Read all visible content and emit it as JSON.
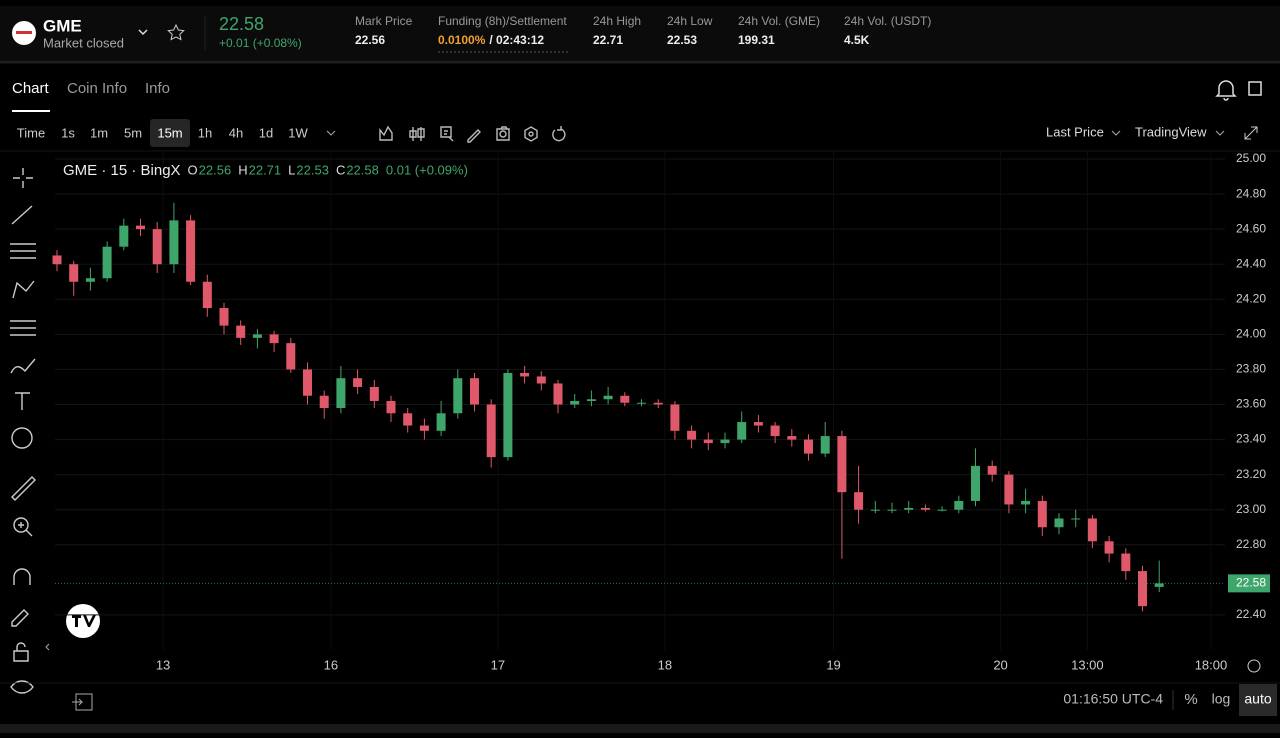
{
  "header": {
    "symbol": "GME",
    "status": "Market closed",
    "price": "22.58",
    "change": "+0.01 (+0.08%)",
    "stats": [
      {
        "label": "Mark Price",
        "value": "22.56"
      },
      {
        "label": "Funding (8h)/Settlement",
        "value": "0.0100%",
        "extra": "/ 02:43:12"
      },
      {
        "label": "24h High",
        "value": "22.71"
      },
      {
        "label": "24h Low",
        "value": "22.53"
      },
      {
        "label": "24h Vol. (GME)",
        "value": "199.31"
      },
      {
        "label": "24h Vol. (USDT)",
        "value": "4.5K"
      }
    ]
  },
  "tabs": [
    "Chart",
    "Coin Info",
    "Info"
  ],
  "toolbar": {
    "intervals": [
      "Time",
      "1s",
      "1m",
      "5m",
      "15m",
      "1h",
      "4h",
      "1d",
      "1W"
    ],
    "active": "15m",
    "price_mode": "Last Price",
    "view": "TradingView"
  },
  "legend": {
    "title": "GME · 15 · BingX",
    "o_label": "O",
    "o": "22.56",
    "h_label": "H",
    "h": "22.71",
    "l_label": "L",
    "l": "22.53",
    "c_label": "C",
    "c": "22.58",
    "change": "0.01 (+0.09%)"
  },
  "footer": {
    "time": "01:16:50 UTC-4",
    "percent": "%",
    "log": "log",
    "auto": "auto"
  },
  "chart_data": {
    "type": "candlestick",
    "up_color": "#3fa66b",
    "down_color": "#e0596b",
    "ohlc": [
      [
        24.45,
        24.48,
        24.36,
        24.4
      ],
      [
        24.4,
        24.42,
        24.22,
        24.3
      ],
      [
        24.3,
        24.38,
        24.25,
        24.32
      ],
      [
        24.32,
        24.53,
        24.3,
        24.5
      ],
      [
        24.5,
        24.66,
        24.48,
        24.62
      ],
      [
        24.62,
        24.66,
        24.56,
        24.6
      ],
      [
        24.6,
        24.64,
        24.35,
        24.4
      ],
      [
        24.4,
        24.75,
        24.35,
        24.65
      ],
      [
        24.65,
        24.68,
        24.28,
        24.3
      ],
      [
        24.3,
        24.34,
        24.1,
        24.15
      ],
      [
        24.15,
        24.18,
        24.0,
        24.05
      ],
      [
        24.05,
        24.08,
        23.94,
        23.98
      ],
      [
        23.98,
        24.03,
        23.92,
        24.0
      ],
      [
        24.0,
        24.02,
        23.9,
        23.95
      ],
      [
        23.95,
        23.98,
        23.78,
        23.8
      ],
      [
        23.8,
        23.84,
        23.6,
        23.65
      ],
      [
        23.65,
        23.68,
        23.52,
        23.58
      ],
      [
        23.58,
        23.82,
        23.55,
        23.75
      ],
      [
        23.75,
        23.8,
        23.66,
        23.7
      ],
      [
        23.7,
        23.74,
        23.58,
        23.62
      ],
      [
        23.62,
        23.65,
        23.5,
        23.55
      ],
      [
        23.55,
        23.58,
        23.44,
        23.48
      ],
      [
        23.48,
        23.52,
        23.4,
        23.45
      ],
      [
        23.45,
        23.62,
        23.42,
        23.55
      ],
      [
        23.55,
        23.8,
        23.52,
        23.75
      ],
      [
        23.75,
        23.78,
        23.56,
        23.6
      ],
      [
        23.6,
        23.63,
        23.24,
        23.3
      ],
      [
        23.3,
        23.8,
        23.28,
        23.78
      ],
      [
        23.78,
        23.82,
        23.72,
        23.76
      ],
      [
        23.76,
        23.79,
        23.68,
        23.72
      ],
      [
        23.72,
        23.74,
        23.55,
        23.6
      ],
      [
        23.6,
        23.66,
        23.58,
        23.62
      ],
      [
        23.62,
        23.68,
        23.59,
        23.63
      ],
      [
        23.63,
        23.7,
        23.6,
        23.65
      ],
      [
        23.65,
        23.67,
        23.59,
        23.61
      ],
      [
        23.61,
        23.63,
        23.59,
        23.61
      ],
      [
        23.61,
        23.63,
        23.58,
        23.6
      ],
      [
        23.6,
        23.62,
        23.4,
        23.45
      ],
      [
        23.45,
        23.48,
        23.35,
        23.4
      ],
      [
        23.4,
        23.44,
        23.34,
        23.38
      ],
      [
        23.38,
        23.44,
        23.35,
        23.4
      ],
      [
        23.4,
        23.56,
        23.38,
        23.5
      ],
      [
        23.5,
        23.54,
        23.44,
        23.48
      ],
      [
        23.48,
        23.5,
        23.38,
        23.42
      ],
      [
        23.42,
        23.46,
        23.36,
        23.4
      ],
      [
        23.4,
        23.43,
        23.28,
        23.32
      ],
      [
        23.32,
        23.5,
        23.3,
        23.42
      ],
      [
        23.42,
        23.45,
        22.72,
        23.1
      ],
      [
        23.1,
        23.25,
        22.92,
        23.0
      ],
      [
        23.0,
        23.05,
        22.98,
        23.0
      ],
      [
        23.0,
        23.04,
        22.98,
        23.0
      ],
      [
        23.0,
        23.05,
        22.98,
        23.01
      ],
      [
        23.01,
        23.03,
        22.99,
        23.0
      ],
      [
        23.0,
        23.02,
        22.99,
        23.0
      ],
      [
        23.0,
        23.08,
        22.98,
        23.05
      ],
      [
        23.05,
        23.35,
        23.02,
        23.25
      ],
      [
        23.25,
        23.28,
        23.16,
        23.2
      ],
      [
        23.2,
        23.22,
        22.98,
        23.03
      ],
      [
        23.03,
        23.12,
        22.98,
        23.05
      ],
      [
        23.05,
        23.08,
        22.85,
        22.9
      ],
      [
        22.9,
        22.98,
        22.86,
        22.95
      ],
      [
        22.95,
        23.0,
        22.9,
        22.95
      ],
      [
        22.95,
        22.97,
        22.78,
        22.82
      ],
      [
        22.82,
        22.85,
        22.7,
        22.75
      ],
      [
        22.75,
        22.78,
        22.6,
        22.65
      ],
      [
        22.65,
        22.68,
        22.42,
        22.45
      ],
      [
        22.56,
        22.71,
        22.53,
        22.58
      ]
    ],
    "xlim": [
      -0.12,
      69.94
    ],
    "xticks": [
      {
        "value": 6.35,
        "label": "13"
      },
      {
        "value": 16.4,
        "label": "16"
      },
      {
        "value": 26.4,
        "label": "17"
      },
      {
        "value": 36.4,
        "label": "18"
      },
      {
        "value": 46.5,
        "label": "19"
      },
      {
        "value": 56.5,
        "label": "20"
      },
      {
        "value": 61.7,
        "label": "13:00"
      },
      {
        "value": 69.1,
        "label": "18:00"
      }
    ],
    "ylim": [
      22.2,
      25.04
    ],
    "yticks": [
      {
        "value": 25,
        "label": "25.00"
      },
      {
        "value": 24.8,
        "label": "24.80"
      },
      {
        "value": 24.6,
        "label": "24.60"
      },
      {
        "value": 24.4,
        "label": "24.40"
      },
      {
        "value": 24.2,
        "label": "24.20"
      },
      {
        "value": 24,
        "label": "24.00"
      },
      {
        "value": 23.8,
        "label": "23.80"
      },
      {
        "value": 23.6,
        "label": "23.60"
      },
      {
        "value": 23.4,
        "label": "23.40"
      },
      {
        "value": 23.2,
        "label": "23.20"
      },
      {
        "value": 23,
        "label": "23.00"
      },
      {
        "value": 22.8,
        "label": "22.80"
      },
      {
        "value": 22.4,
        "label": "22.40"
      }
    ],
    "last_price": {
      "value": 22.58,
      "label": "22.58"
    },
    "grid": true
  }
}
